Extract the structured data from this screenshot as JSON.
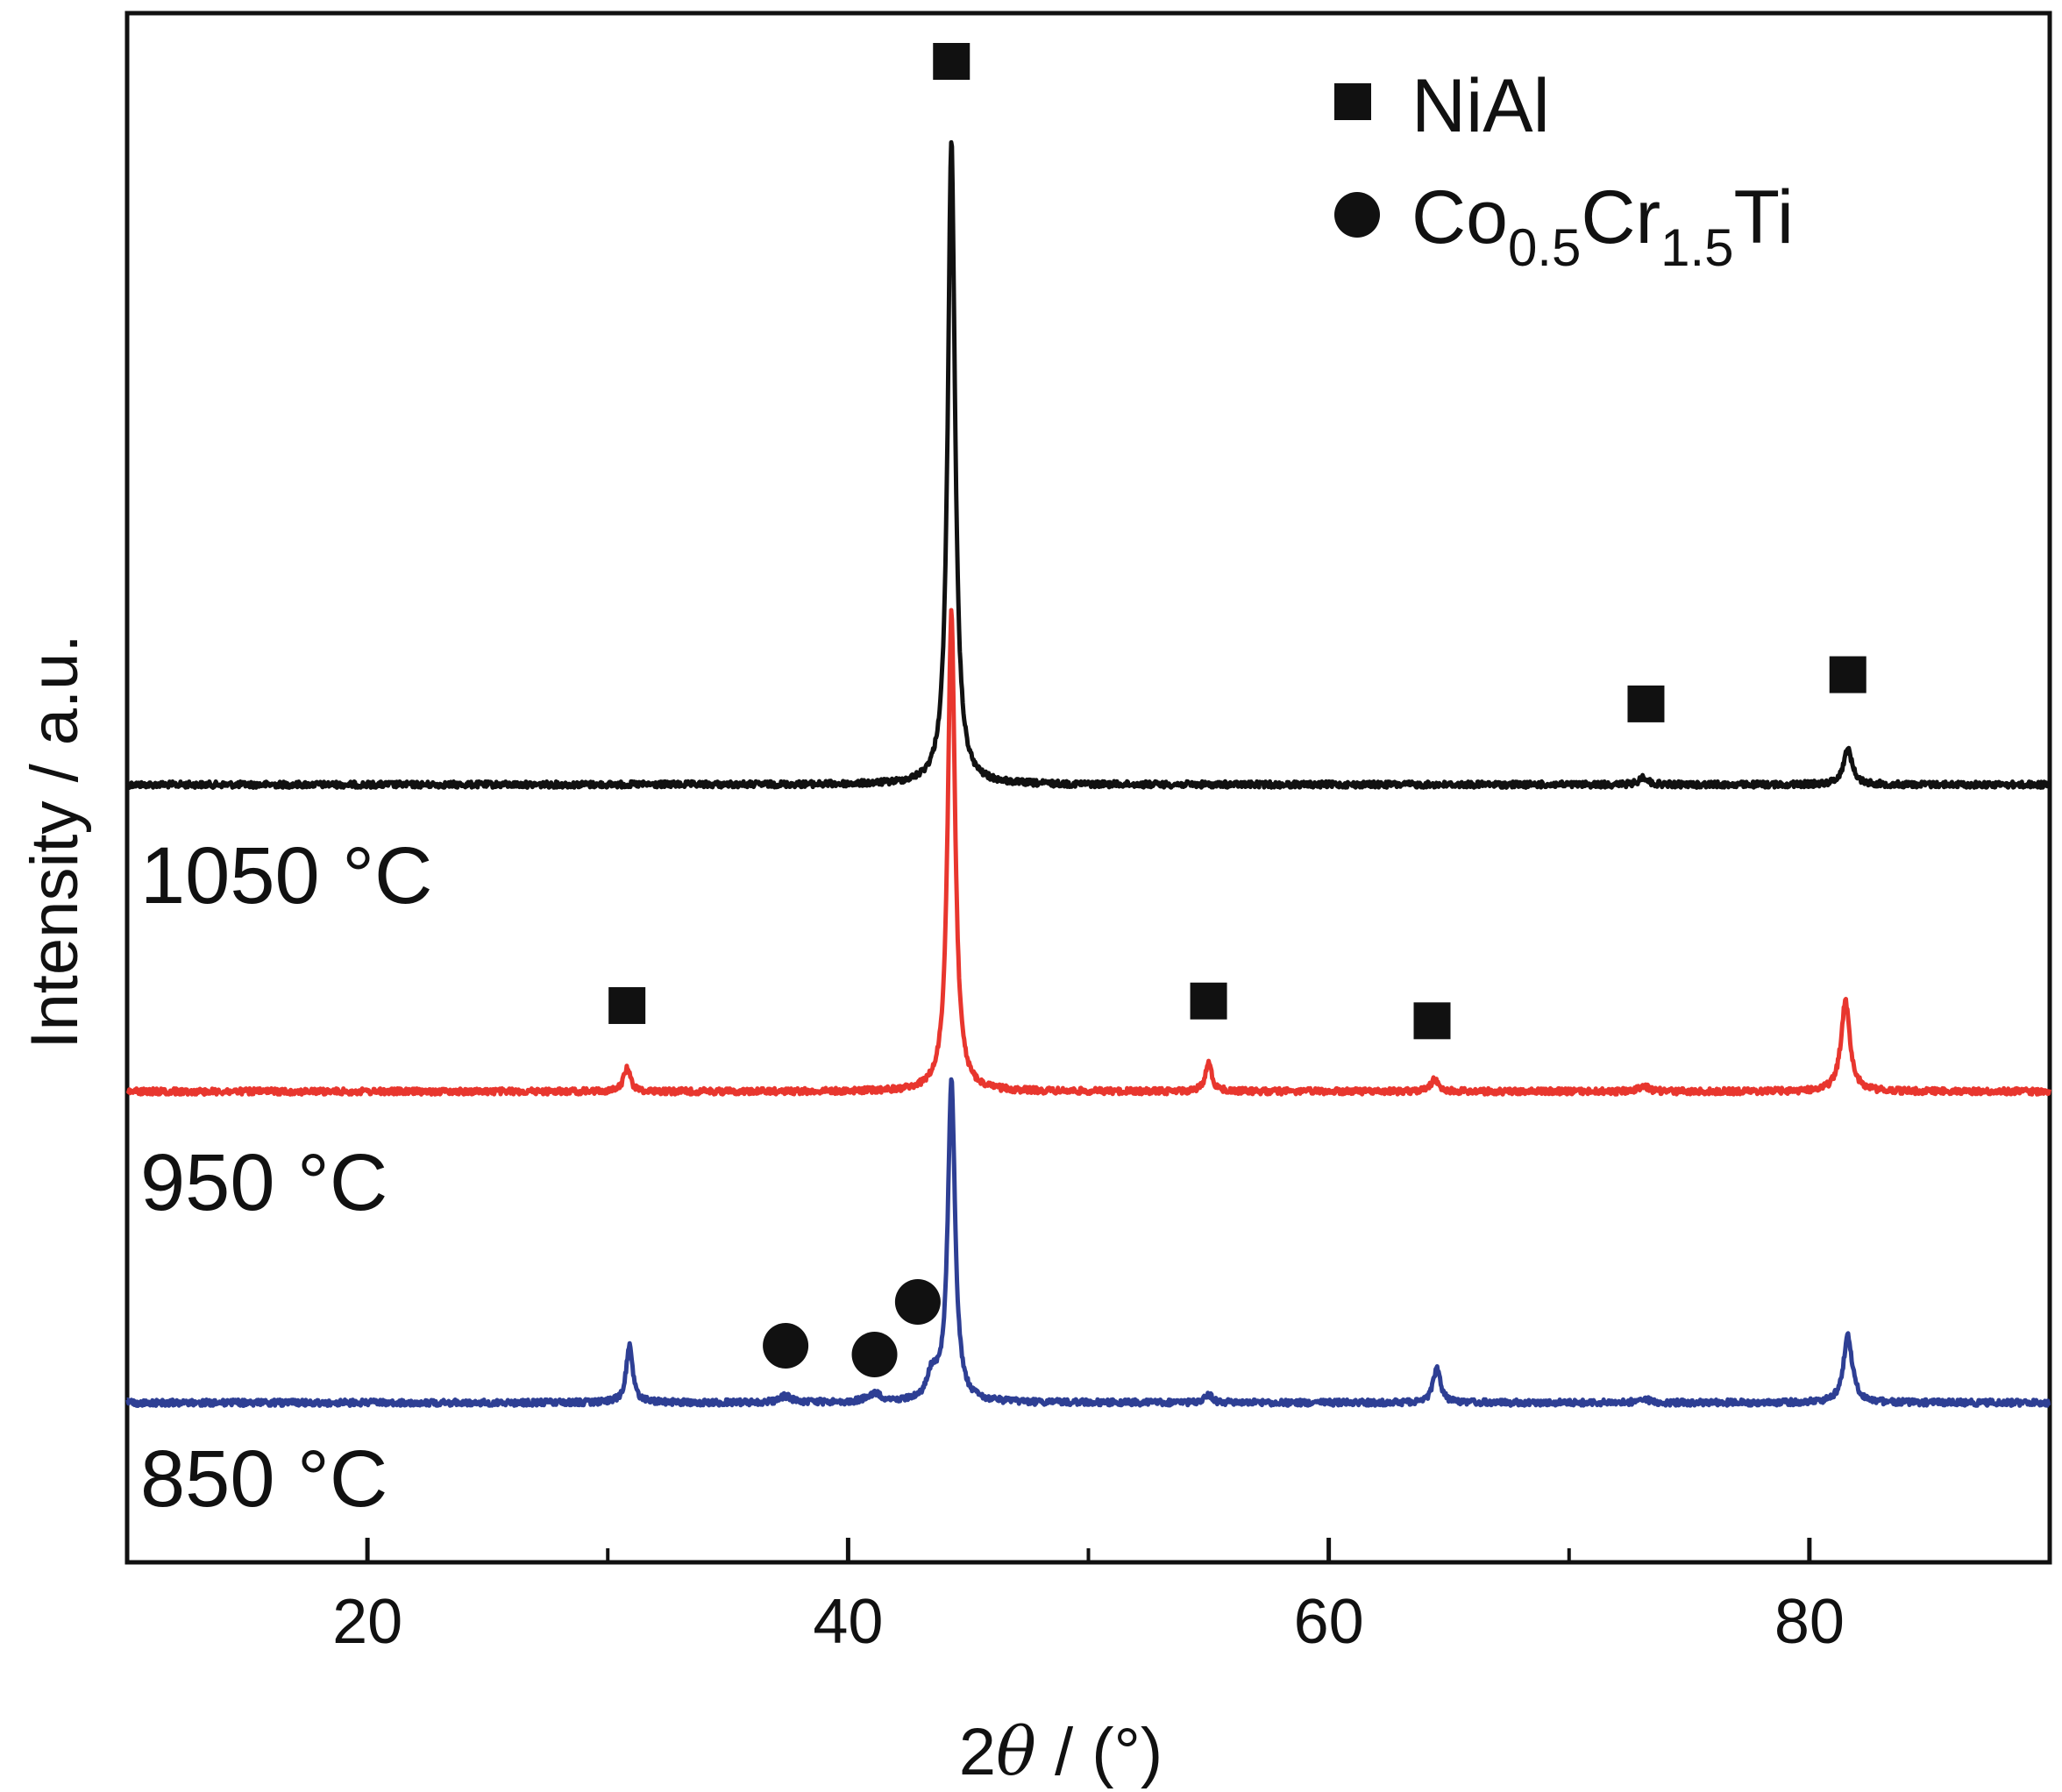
{
  "chart_data": {
    "type": "line",
    "xlabel_prefix": "2",
    "xlabel_symbol": "θ",
    "xlabel_suffix": " / (°)",
    "ylabel": "Intensity / a.u.",
    "xlim": [
      10,
      90
    ],
    "x_ticks_major": [
      20,
      40,
      60,
      80
    ],
    "x_ticks_minor": [
      30,
      50,
      70
    ],
    "legend_position": "top-right",
    "legend": [
      {
        "marker": "square",
        "label": "NiAl"
      },
      {
        "marker": "circle",
        "label_main": "Co",
        "sub1": "0.5",
        "label_mid": "Cr",
        "sub2": "1.5",
        "label_end": "Ti"
      }
    ],
    "colors": {
      "1050": "#111111",
      "950": "#e8362e",
      "850": "#2e3f94",
      "axis": "#111111"
    },
    "series": [
      {
        "name": "1050 °C",
        "label_text": "1050 °C",
        "key": "1050",
        "peaks": [
          {
            "x": 44.3,
            "h": 1.0,
            "w": 0.18
          },
          {
            "x": 73.1,
            "h": 0.012,
            "w": 0.2
          },
          {
            "x": 81.6,
            "h": 0.055,
            "w": 0.22
          }
        ],
        "markers": [
          {
            "shape": "square",
            "x": 44.3
          },
          {
            "shape": "square",
            "x": 73.2
          },
          {
            "shape": "square",
            "x": 81.6
          }
        ]
      },
      {
        "name": "950 °C",
        "label_text": "950 °C",
        "key": "950",
        "peaks": [
          {
            "x": 30.8,
            "h": 0.038,
            "w": 0.16
          },
          {
            "x": 44.3,
            "h": 0.745,
            "w": 0.18
          },
          {
            "x": 55.0,
            "h": 0.045,
            "w": 0.16
          },
          {
            "x": 64.4,
            "h": 0.018,
            "w": 0.2
          },
          {
            "x": 73.1,
            "h": 0.01,
            "w": 0.2
          },
          {
            "x": 81.5,
            "h": 0.14,
            "w": 0.22
          }
        ],
        "markers": [
          {
            "shape": "square",
            "x": 30.8
          },
          {
            "shape": "square",
            "x": 55.0
          },
          {
            "shape": "square",
            "x": 64.3
          }
        ]
      },
      {
        "name": "850 °C",
        "label_text": "850 °C",
        "key": "850",
        "peaks": [
          {
            "x": 30.9,
            "h": 0.09,
            "w": 0.16
          },
          {
            "x": 37.4,
            "h": 0.01,
            "w": 0.3
          },
          {
            "x": 41.1,
            "h": 0.013,
            "w": 0.35
          },
          {
            "x": 43.5,
            "h": 0.04,
            "w": 0.25
          },
          {
            "x": 44.3,
            "h": 0.5,
            "w": 0.18
          },
          {
            "x": 55.0,
            "h": 0.012,
            "w": 0.18
          },
          {
            "x": 64.5,
            "h": 0.055,
            "w": 0.18
          },
          {
            "x": 73.1,
            "h": 0.008,
            "w": 0.2
          },
          {
            "x": 81.6,
            "h": 0.105,
            "w": 0.22
          }
        ],
        "markers": [
          {
            "shape": "circle",
            "x": 37.4
          },
          {
            "shape": "circle",
            "x": 41.1
          },
          {
            "shape": "circle",
            "x": 42.9
          }
        ]
      }
    ]
  }
}
